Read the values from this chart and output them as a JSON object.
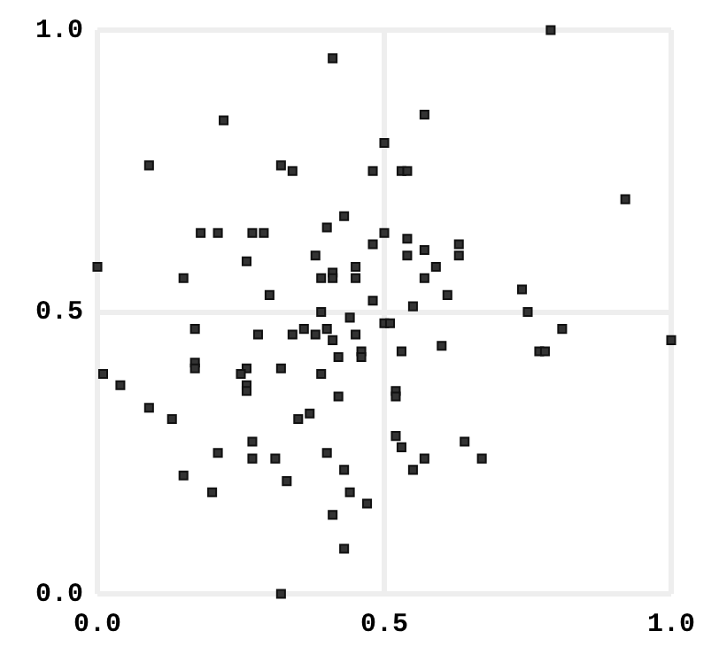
{
  "chart_data": {
    "type": "scatter",
    "marker": "square",
    "grid": true,
    "legend": false,
    "xlim": [
      0,
      1
    ],
    "ylim": [
      0,
      1
    ],
    "xticks": [
      {
        "value": 0,
        "label": "0.0"
      },
      {
        "value": 0.5,
        "label": "0.5"
      },
      {
        "value": 1,
        "label": "1.0"
      }
    ],
    "yticks": [
      {
        "value": 0,
        "label": "0.0"
      },
      {
        "value": 0.5,
        "label": "0.5"
      },
      {
        "value": 1,
        "label": "1.0"
      }
    ],
    "series": [
      {
        "color": "#333333",
        "x": [
          0.41,
          0.22,
          0.09,
          0.32,
          0.34,
          0.48,
          0.5,
          0.18,
          0.21,
          0.27,
          0.29,
          0.4,
          0.43,
          0.48,
          0.5,
          0.0,
          0.15,
          0.26,
          0.38,
          0.39,
          0.41,
          0.41,
          0.45,
          0.45,
          0.3,
          0.39,
          0.44,
          0.48,
          0.79,
          0.57,
          0.53,
          0.54,
          0.92,
          0.54,
          0.54,
          0.57,
          0.63,
          0.63,
          0.59,
          0.57,
          0.61,
          0.74,
          0.75,
          0.55,
          0.5,
          0.51,
          0.17,
          0.28,
          0.34,
          0.36,
          0.38,
          0.4,
          0.41,
          0.45,
          0.42,
          0.46,
          0.46,
          0.01,
          0.04,
          0.09,
          0.13,
          0.17,
          0.17,
          0.26,
          0.25,
          0.26,
          0.26,
          0.32,
          0.39,
          0.42,
          0.37,
          0.35,
          0.27,
          0.21,
          0.27,
          0.31,
          0.4,
          0.43,
          0.15,
          0.2,
          0.33,
          0.44,
          0.47,
          0.41,
          0.43,
          0.32,
          0.81,
          1.0,
          0.77,
          0.78,
          0.53,
          0.6,
          0.52,
          0.52,
          0.52,
          0.53,
          0.57,
          0.55,
          0.64,
          0.67
        ],
        "values": [
          0.95,
          0.84,
          0.76,
          0.76,
          0.75,
          0.75,
          0.8,
          0.64,
          0.64,
          0.64,
          0.64,
          0.65,
          0.67,
          0.62,
          0.64,
          0.58,
          0.56,
          0.59,
          0.6,
          0.56,
          0.57,
          0.56,
          0.56,
          0.58,
          0.53,
          0.5,
          0.49,
          0.52,
          1.0,
          0.85,
          0.75,
          0.75,
          0.7,
          0.63,
          0.6,
          0.61,
          0.62,
          0.6,
          0.58,
          0.56,
          0.53,
          0.54,
          0.5,
          0.51,
          0.48,
          0.48,
          0.47,
          0.46,
          0.46,
          0.47,
          0.46,
          0.47,
          0.45,
          0.46,
          0.42,
          0.43,
          0.42,
          0.39,
          0.37,
          0.33,
          0.31,
          0.41,
          0.4,
          0.4,
          0.39,
          0.37,
          0.36,
          0.4,
          0.39,
          0.35,
          0.32,
          0.31,
          0.27,
          0.25,
          0.24,
          0.24,
          0.25,
          0.22,
          0.21,
          0.18,
          0.2,
          0.18,
          0.16,
          0.14,
          0.08,
          0.0,
          0.47,
          0.45,
          0.43,
          0.43,
          0.43,
          0.44,
          0.36,
          0.35,
          0.28,
          0.26,
          0.24,
          0.22,
          0.27,
          0.24
        ]
      }
    ]
  }
}
